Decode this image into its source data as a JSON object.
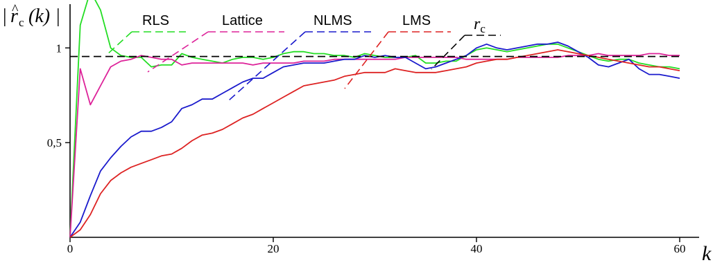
{
  "chart_data": {
    "type": "line",
    "xlabel": "k",
    "ylabel": {
      "bar_left": "|",
      "r": "r",
      "hat": "^",
      "sub": "c",
      "arg": "(k)",
      "bar_right": "|"
    },
    "xlim": [
      0,
      60
    ],
    "ylim": [
      0,
      1.2
    ],
    "xticks": [
      0,
      20,
      40,
      60
    ],
    "xtick_labels": [
      "0",
      "20",
      "40",
      "60"
    ],
    "yticks": [
      0.5,
      1
    ],
    "ytick_labels": [
      "0,5",
      "1"
    ],
    "grid": false,
    "legend_placement": "top",
    "series": [
      {
        "name": "RLS",
        "color": "#22dd22",
        "dashed": false,
        "x": [
          0,
          1,
          2,
          3,
          4,
          5,
          6,
          7,
          8,
          9,
          10,
          11,
          12,
          13,
          14,
          15,
          16,
          17,
          18,
          19,
          20,
          21,
          22,
          23,
          24,
          25,
          26,
          27,
          28,
          29,
          30,
          31,
          32,
          33,
          34,
          35,
          36,
          37,
          38,
          39,
          40,
          41,
          42,
          43,
          44,
          45,
          46,
          47,
          48,
          49,
          50,
          51,
          52,
          53,
          54,
          55,
          56,
          57,
          58,
          59,
          60
        ],
        "values": [
          0,
          1.12,
          1.3,
          1.2,
          1.0,
          0.96,
          0.95,
          0.95,
          0.9,
          0.91,
          0.91,
          0.97,
          0.95,
          0.94,
          0.93,
          0.92,
          0.94,
          0.95,
          0.95,
          0.94,
          0.95,
          0.97,
          0.98,
          0.98,
          0.97,
          0.97,
          0.96,
          0.96,
          0.95,
          0.97,
          0.96,
          0.95,
          0.95,
          0.95,
          0.96,
          0.92,
          0.92,
          0.93,
          0.93,
          0.96,
          0.99,
          1.0,
          0.99,
          0.98,
          0.99,
          1.0,
          1.01,
          1.02,
          1.02,
          1.0,
          0.98,
          0.96,
          0.94,
          0.93,
          0.94,
          0.94,
          0.92,
          0.91,
          0.9,
          0.9,
          0.89
        ]
      },
      {
        "name": "Lattice",
        "color": "#dd2299",
        "dashed": false,
        "x": [
          0,
          1,
          2,
          3,
          4,
          5,
          6,
          7,
          8,
          9,
          10,
          11,
          12,
          13,
          14,
          15,
          16,
          17,
          18,
          19,
          20,
          21,
          22,
          23,
          24,
          25,
          26,
          27,
          28,
          29,
          30,
          31,
          32,
          33,
          34,
          35,
          36,
          37,
          38,
          39,
          40,
          41,
          42,
          43,
          44,
          45,
          46,
          47,
          48,
          49,
          50,
          51,
          52,
          53,
          54,
          55,
          56,
          57,
          58,
          59,
          60
        ],
        "values": [
          0,
          0.89,
          0.7,
          0.8,
          0.9,
          0.93,
          0.94,
          0.96,
          0.95,
          0.94,
          0.94,
          0.91,
          0.92,
          0.92,
          0.92,
          0.92,
          0.92,
          0.92,
          0.91,
          0.92,
          0.92,
          0.92,
          0.92,
          0.93,
          0.93,
          0.93,
          0.94,
          0.94,
          0.94,
          0.94,
          0.94,
          0.94,
          0.94,
          0.95,
          0.95,
          0.95,
          0.95,
          0.95,
          0.95,
          0.94,
          0.94,
          0.94,
          0.94,
          0.94,
          0.95,
          0.95,
          0.95,
          0.95,
          0.95,
          0.96,
          0.96,
          0.96,
          0.97,
          0.96,
          0.96,
          0.96,
          0.96,
          0.97,
          0.97,
          0.96,
          0.96
        ]
      },
      {
        "name": "NLMS",
        "color": "#1a1acc",
        "dashed": false,
        "x": [
          0,
          1,
          2,
          3,
          4,
          5,
          6,
          7,
          8,
          9,
          10,
          11,
          12,
          13,
          14,
          15,
          16,
          17,
          18,
          19,
          20,
          21,
          22,
          23,
          24,
          25,
          26,
          27,
          28,
          29,
          30,
          31,
          32,
          33,
          34,
          35,
          36,
          37,
          38,
          39,
          40,
          41,
          42,
          43,
          44,
          45,
          46,
          47,
          48,
          49,
          50,
          51,
          52,
          53,
          54,
          55,
          56,
          57,
          58,
          59,
          60
        ],
        "values": [
          0,
          0.08,
          0.22,
          0.35,
          0.42,
          0.48,
          0.53,
          0.56,
          0.56,
          0.58,
          0.61,
          0.68,
          0.7,
          0.73,
          0.73,
          0.76,
          0.79,
          0.82,
          0.84,
          0.84,
          0.87,
          0.9,
          0.91,
          0.92,
          0.92,
          0.92,
          0.93,
          0.94,
          0.94,
          0.96,
          0.95,
          0.96,
          0.95,
          0.95,
          0.92,
          0.89,
          0.9,
          0.92,
          0.94,
          0.96,
          1.0,
          1.02,
          1.0,
          0.99,
          1.0,
          1.01,
          1.02,
          1.02,
          1.03,
          1.01,
          0.98,
          0.95,
          0.91,
          0.9,
          0.92,
          0.94,
          0.89,
          0.86,
          0.86,
          0.85,
          0.84
        ]
      },
      {
        "name": "LMS",
        "color": "#dd2222",
        "dashed": false,
        "x": [
          0,
          1,
          2,
          3,
          4,
          5,
          6,
          7,
          8,
          9,
          10,
          11,
          12,
          13,
          14,
          15,
          16,
          17,
          18,
          19,
          20,
          21,
          22,
          23,
          24,
          25,
          26,
          27,
          28,
          29,
          30,
          31,
          32,
          33,
          34,
          35,
          36,
          37,
          38,
          39,
          40,
          41,
          42,
          43,
          44,
          45,
          46,
          47,
          48,
          49,
          50,
          51,
          52,
          53,
          54,
          55,
          56,
          57,
          58,
          59,
          60
        ],
        "values": [
          0,
          0.04,
          0.12,
          0.23,
          0.3,
          0.34,
          0.37,
          0.39,
          0.41,
          0.43,
          0.44,
          0.47,
          0.51,
          0.54,
          0.55,
          0.57,
          0.6,
          0.63,
          0.65,
          0.68,
          0.71,
          0.74,
          0.77,
          0.8,
          0.81,
          0.82,
          0.83,
          0.85,
          0.86,
          0.87,
          0.87,
          0.87,
          0.89,
          0.88,
          0.87,
          0.87,
          0.87,
          0.88,
          0.89,
          0.9,
          0.92,
          0.93,
          0.94,
          0.94,
          0.95,
          0.96,
          0.97,
          0.98,
          0.99,
          0.98,
          0.97,
          0.96,
          0.95,
          0.94,
          0.93,
          0.92,
          0.91,
          0.9,
          0.9,
          0.89,
          0.88
        ]
      },
      {
        "name": "r_c",
        "display": {
          "main": "r",
          "sub": "c"
        },
        "color": "#000000",
        "dashed": true,
        "x": [
          0,
          60
        ],
        "values": [
          0.955,
          0.955
        ]
      }
    ]
  }
}
